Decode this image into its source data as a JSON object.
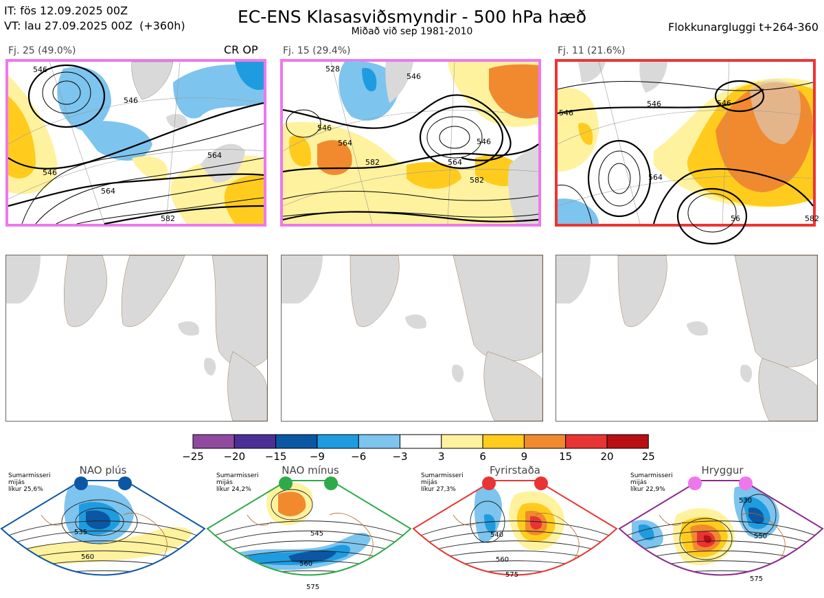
{
  "header": {
    "it_line": "IT: fös 12.09.2025 00Z",
    "vt_line": "VT: lau 27.09.2025 00Z  (+360h)",
    "title": "EC-ENS Klasasviðsmyndir - 500 hPa hæð",
    "subtitle": "Miðað við sep 1981-2010",
    "window": "Flokkunargluggi t+264-360"
  },
  "panels": [
    {
      "label": "Fj. 25 (49.0%)",
      "tag": "CR OP",
      "border_color": "#ee77ee",
      "contours": [
        "546",
        "546",
        "564",
        "546",
        "564",
        "582"
      ]
    },
    {
      "label": "Fj. 15 (29.4%)",
      "tag": "",
      "border_color": "#ee77ee",
      "contours": [
        "528",
        "546",
        "546",
        "564",
        "582",
        "546",
        "564",
        "582"
      ]
    },
    {
      "label": "Fj. 11 (21.6%)",
      "tag": "",
      "border_color": "#ee3333",
      "contours": [
        "546",
        "546",
        "564",
        "546",
        "56",
        "582"
      ]
    }
  ],
  "colorbar": {
    "ticks": [
      "−25",
      "−20",
      "−15",
      "−9",
      "−6",
      "−3",
      "3",
      "6",
      "9",
      "15",
      "20",
      "25"
    ],
    "colors": [
      "#8f4a9e",
      "#4b2f96",
      "#0b57a4",
      "#1f9ce0",
      "#7dc4ee",
      "#ffffff",
      "#fff29e",
      "#ffcc1e",
      "#f18a2e",
      "#e93434",
      "#b80f14"
    ]
  },
  "regimes": [
    {
      "name": "NAO plús",
      "info_lines": [
        "Sumarmisseri",
        "mijás",
        "líkur 25,6%"
      ],
      "color": "#0b57a4",
      "contours": [
        "535",
        "560"
      ]
    },
    {
      "name": "NAO mínus",
      "info_lines": [
        "Sumarmisseri",
        "mijás",
        "líkur 24,2%"
      ],
      "color": "#2eaa4a",
      "contours": [
        "545",
        "560",
        "575"
      ]
    },
    {
      "name": "Fyrirstaða",
      "info_lines": [
        "Sumarmisseri",
        "mijás",
        "líkur 27,3%"
      ],
      "color": "#e93434",
      "contours": [
        "540",
        "560",
        "575"
      ]
    },
    {
      "name": "Hryggur",
      "info_lines": [
        "Sumarmisseri",
        "mijás",
        "líkur 22,9%"
      ],
      "color": "#8a2a8e",
      "contours": [
        "530",
        "550",
        "575"
      ]
    }
  ]
}
